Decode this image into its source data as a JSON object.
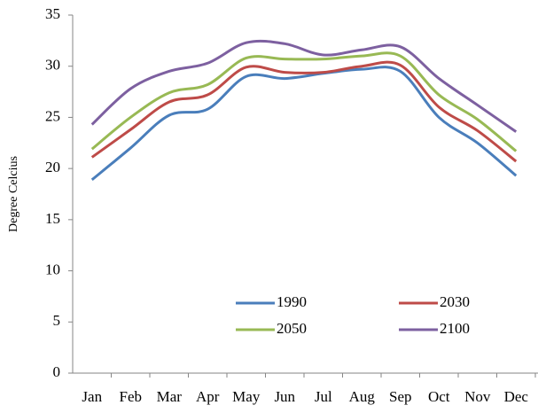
{
  "chart_data": {
    "type": "line",
    "y_label": "Degree Celcius",
    "categories": [
      "Jan",
      "Feb",
      "Mar",
      "Apr",
      "May",
      "Jun",
      "Jul",
      "Aug",
      "Sep",
      "Oct",
      "Nov",
      "Dec"
    ],
    "series": [
      {
        "name": "1990",
        "color": "#4a7ebb",
        "values": [
          18.9,
          22,
          25.2,
          25.8,
          29,
          28.8,
          29.3,
          29.7,
          29.5,
          25,
          22.5,
          19.3
        ]
      },
      {
        "name": "2030",
        "color": "#be4b48",
        "values": [
          21.1,
          23.8,
          26.5,
          27.2,
          29.9,
          29.4,
          29.4,
          30,
          30.1,
          26,
          23.7,
          20.7
        ]
      },
      {
        "name": "2050",
        "color": "#98b954",
        "values": [
          21.9,
          25,
          27.4,
          28.2,
          30.8,
          30.7,
          30.7,
          31,
          31,
          27.2,
          24.8,
          21.7
        ]
      },
      {
        "name": "2100",
        "color": "#7d60a0",
        "values": [
          24.3,
          27.8,
          29.5,
          30.3,
          32.3,
          32.2,
          31.1,
          31.6,
          31.9,
          28.8,
          26.2,
          23.6
        ]
      }
    ],
    "ylim": [
      0,
      35
    ],
    "yticks": [
      0,
      5,
      10,
      15,
      20,
      25,
      30,
      35
    ],
    "grid": false,
    "smooth": true,
    "legend": "lower-center"
  }
}
